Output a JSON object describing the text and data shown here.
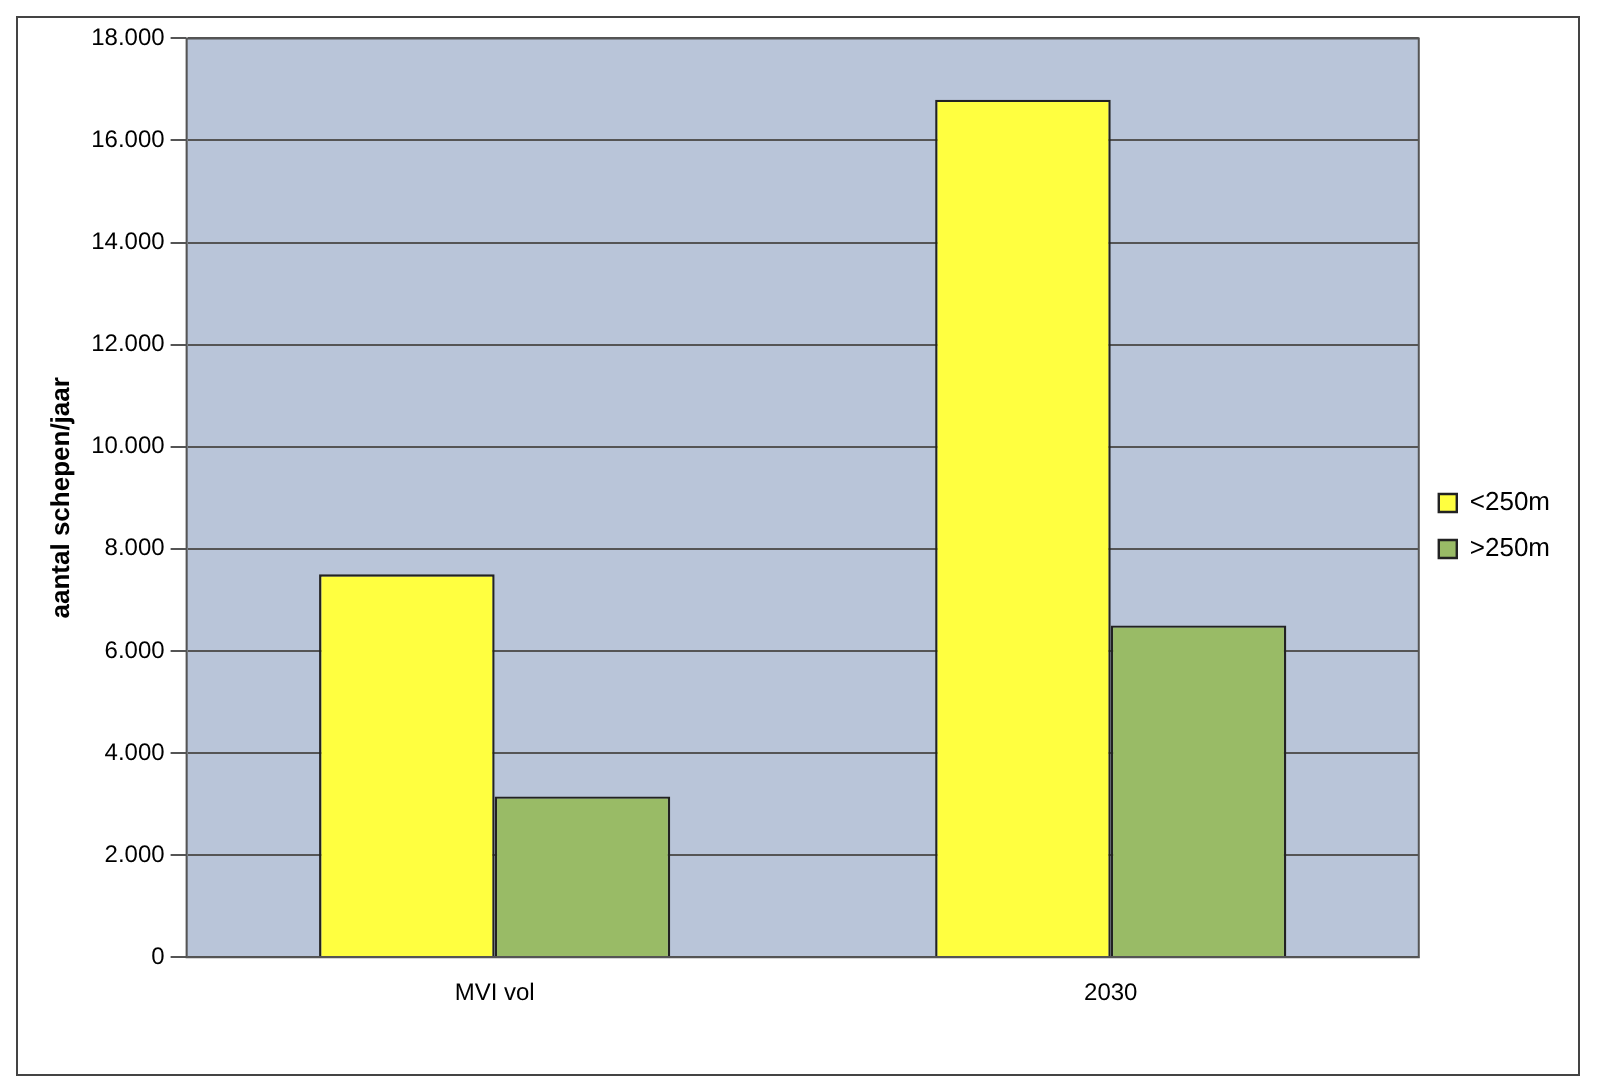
{
  "chart_data": {
    "type": "bar",
    "ylabel": "aantal schepen/jaar",
    "categories": [
      "MVI vol",
      "2030"
    ],
    "series": [
      {
        "name": "<250m",
        "color": "#ffff40",
        "values": [
          7500,
          16800
        ]
      },
      {
        "name": ">250m",
        "color": "#99bb66",
        "values": [
          3150,
          6500
        ]
      }
    ],
    "ylim": [
      0,
      18000
    ],
    "yticks": [
      0,
      {
        "value": 2000,
        "label": "2.000"
      },
      {
        "value": 4000,
        "label": "4.000"
      },
      {
        "value": 6000,
        "label": "6.000"
      },
      {
        "value": 8000,
        "label": "8.000"
      },
      {
        "value": 10000,
        "label": "10.000"
      },
      {
        "value": 12000,
        "label": "12.000"
      },
      {
        "value": 14000,
        "label": "14.000"
      },
      {
        "value": 16000,
        "label": "16.000"
      },
      {
        "value": 18000,
        "label": "18.000"
      }
    ],
    "grid": "y",
    "legend": "right"
  }
}
